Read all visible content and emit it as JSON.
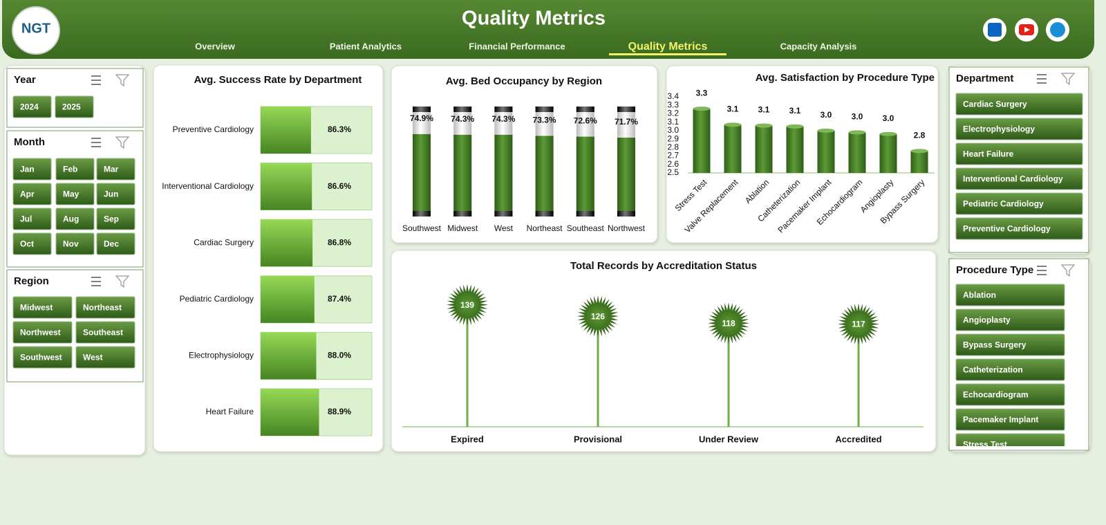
{
  "header": {
    "logo": "NGT",
    "title": "Quality Metrics",
    "nav": [
      "Overview",
      "Patient Analytics",
      "Financial Performance",
      "Quality Metrics",
      "Capacity Analysis"
    ],
    "active_nav": 3
  },
  "slicers": [
    {
      "title": "Year",
      "items": [
        "2024",
        "2025"
      ]
    },
    {
      "title": "Month",
      "items": [
        "Jan",
        "Feb",
        "Mar",
        "Apr",
        "May",
        "Jun",
        "Jul",
        "Aug",
        "Sep",
        "Oct",
        "Nov",
        "Dec"
      ]
    },
    {
      "title": "Region",
      "items": [
        "Midwest",
        "Northeast",
        "Northwest",
        "Southeast",
        "Southwest",
        "West"
      ]
    },
    {
      "title": "Department",
      "items": [
        "Cardiac Surgery",
        "Electrophysiology",
        "Heart Failure",
        "Interventional Cardiology",
        "Pediatric Cardiology",
        "Preventive Cardiology"
      ]
    },
    {
      "title": "Procedure Type",
      "items": [
        "Ablation",
        "Angioplasty",
        "Bypass Surgery",
        "Catheterization",
        "Echocardiogram",
        "Pacemaker Implant",
        "Stress Test"
      ]
    }
  ],
  "chart_data": [
    {
      "type": "bar",
      "orientation": "horizontal",
      "title": "Avg. Success Rate by Department",
      "categories": [
        "Preventive Cardiology",
        "Interventional Cardiology",
        "Cardiac Surgery",
        "Pediatric Cardiology",
        "Electrophysiology",
        "Heart Failure"
      ],
      "values": [
        86.3,
        86.6,
        86.8,
        87.4,
        88.0,
        88.9
      ],
      "value_labels": [
        "86.3%",
        "86.6%",
        "86.8%",
        "87.4%",
        "88.0%",
        "88.9%"
      ],
      "xlim": [
        70,
        106
      ],
      "color": "#5a9a2c"
    },
    {
      "type": "bar",
      "orientation": "vertical",
      "title": "Avg. Bed Occupancy by Region",
      "categories": [
        "Southwest",
        "Midwest",
        "West",
        "Northeast",
        "Southeast",
        "Northwest"
      ],
      "values": [
        74.9,
        74.3,
        74.3,
        73.3,
        72.6,
        71.7
      ],
      "value_labels": [
        "74.9%",
        "74.3%",
        "74.3%",
        "73.3%",
        "72.6%",
        "71.7%"
      ],
      "ylim": [
        0,
        100
      ],
      "color": "#4f8a2e"
    },
    {
      "type": "bar",
      "orientation": "vertical",
      "title": "Avg. Satisfaction by Procedure Type",
      "categories": [
        "Stress Test",
        "Valve Replacement",
        "Ablation",
        "Catheterization",
        "Pacemaker Implant",
        "Echocardiogram",
        "Angioplasty",
        "Bypass Surgery"
      ],
      "values": [
        3.26,
        3.07,
        3.06,
        3.05,
        3.0,
        2.98,
        2.96,
        2.76
      ],
      "value_labels": [
        "3.3",
        "3.1",
        "3.1",
        "3.1",
        "3.0",
        "3.0",
        "3.0",
        "2.8"
      ],
      "ylim": [
        2.5,
        3.4
      ],
      "yticks": [
        2.5,
        2.6,
        2.7,
        2.8,
        2.9,
        {
          "value": 3,
          "label": "3.0"
        },
        3.1,
        3.2,
        3.3,
        3.4
      ],
      "color": "#3f7a22"
    },
    {
      "type": "lollipop",
      "title": "Total Records by Accreditation Status",
      "categories": [
        "Expired",
        "Provisional",
        "Under Review",
        "Accredited"
      ],
      "values": [
        139,
        126,
        118,
        117
      ],
      "ylim": [
        0,
        160
      ],
      "color": "#3d6e1d"
    }
  ]
}
